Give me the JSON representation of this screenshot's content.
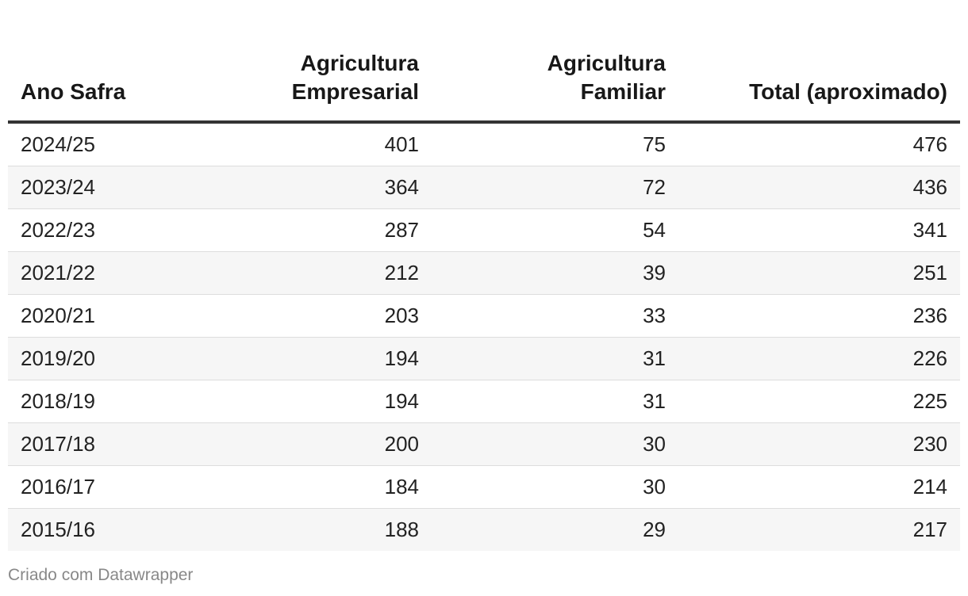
{
  "chart_data": {
    "type": "table",
    "columns": [
      "Ano Safra",
      "Agricultura Empresarial",
      "Agricultura Familiar",
      "Total (aproximado)"
    ],
    "header_lines": [
      [
        "Ano Safra"
      ],
      [
        "Agricultura",
        "Empresarial"
      ],
      [
        "Agricultura",
        "Familiar"
      ],
      [
        "Total (aproximado)"
      ]
    ],
    "rows": [
      [
        "2024/25",
        401,
        75,
        476
      ],
      [
        "2023/24",
        364,
        72,
        436
      ],
      [
        "2022/23",
        287,
        54,
        341
      ],
      [
        "2021/22",
        212,
        39,
        251
      ],
      [
        "2020/21",
        203,
        33,
        236
      ],
      [
        "2019/20",
        194,
        31,
        226
      ],
      [
        "2018/19",
        194,
        31,
        225
      ],
      [
        "2017/18",
        200,
        30,
        230
      ],
      [
        "2016/17",
        184,
        30,
        214
      ],
      [
        "2015/16",
        188,
        29,
        217
      ]
    ],
    "stripe_color": "#f6f6f6",
    "header_rule_color": "#333333"
  },
  "footer": {
    "credit": "Criado com Datawrapper"
  }
}
